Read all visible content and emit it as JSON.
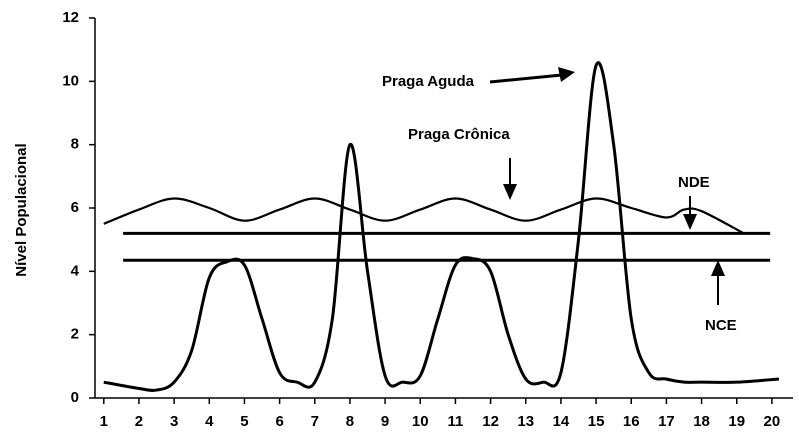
{
  "chart_data": {
    "type": "line",
    "y_label": "Nível Populacional",
    "xlim": [
      0.75,
      20.6
    ],
    "xticks": [
      1,
      2,
      3,
      4,
      5,
      6,
      7,
      8,
      9,
      10,
      11,
      12,
      13,
      14,
      15,
      16,
      17,
      18,
      19,
      20
    ],
    "ylim": [
      0,
      12
    ],
    "yticks": [
      0,
      2,
      4,
      6,
      8,
      10,
      12
    ],
    "series": [
      {
        "color": "#000000",
        "x": [
          1,
          2,
          3,
          4,
          5,
          6,
          7,
          8,
          9,
          10,
          11,
          12,
          13,
          14,
          15,
          16,
          17,
          17.5,
          18,
          19.2
        ],
        "values": [
          5.5,
          5.95,
          6.3,
          6.0,
          5.6,
          5.95,
          6.3,
          5.95,
          5.6,
          5.95,
          6.3,
          5.95,
          5.6,
          5.95,
          6.3,
          6.0,
          5.7,
          5.95,
          5.9,
          5.2
        ]
      },
      {
        "color": "#000000",
        "x": [
          1,
          2,
          2.5,
          3,
          3.5,
          4,
          4.5,
          5,
          5.5,
          6,
          6.5,
          7,
          7.5,
          8,
          8.5,
          9,
          9.5,
          10,
          10.5,
          11,
          11.5,
          12,
          12.5,
          13,
          13.5,
          14,
          14.5,
          15,
          15.5,
          16,
          16.5,
          17,
          17.5,
          18,
          19,
          20.2
        ],
        "values": [
          0.5,
          0.3,
          0.25,
          0.5,
          1.5,
          3.8,
          4.3,
          4.2,
          2.5,
          0.8,
          0.5,
          0.5,
          2.5,
          8.0,
          4.0,
          0.7,
          0.5,
          0.7,
          2.5,
          4.2,
          4.4,
          4.0,
          2.0,
          0.6,
          0.5,
          0.8,
          5.0,
          10.5,
          8.0,
          2.5,
          0.8,
          0.6,
          0.5,
          0.5,
          0.5,
          0.6
        ]
      }
    ],
    "hlines": [
      {
        "label": "NDE",
        "value": 5.2,
        "x": [
          1.55,
          19.95
        ]
      },
      {
        "label": "NCE",
        "value": 4.35,
        "x": [
          1.55,
          19.95
        ]
      }
    ],
    "annotations": [
      "Praga Aguda",
      "Praga Crônica"
    ]
  }
}
